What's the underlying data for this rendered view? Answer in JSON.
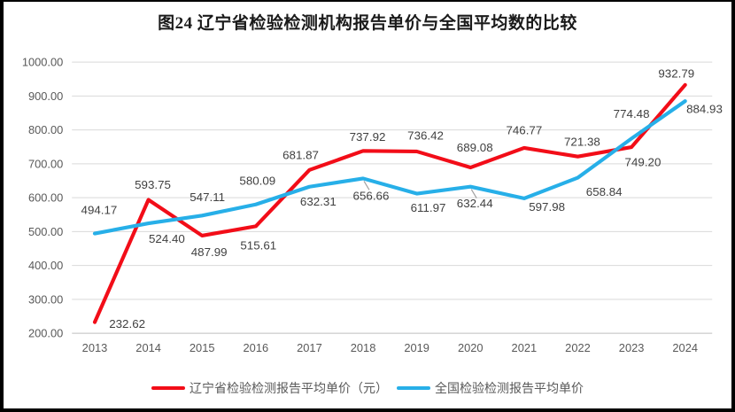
{
  "colors": {
    "liaoning_red": "#F20D18",
    "national_blue": "#27AFE8",
    "grid": "#D9D9D9",
    "axis": "#BFBFBF",
    "tick_text": "#595959",
    "label_text": "#404040",
    "leader": "#A0A0A0",
    "frame": "#000000"
  },
  "chart_data": {
    "type": "line",
    "title": "图24 辽宁省检验检测机构报告单价与全国平均数的比较",
    "categories": [
      "2013",
      "2014",
      "2015",
      "2016",
      "2017",
      "2018",
      "2019",
      "2020",
      "2021",
      "2022",
      "2023",
      "2024"
    ],
    "series": [
      {
        "id": "liaoning",
        "name": "辽宁省检验检测报告平均单价（元）",
        "color": "#F20D18",
        "values": [
          232.62,
          593.75,
          487.99,
          515.61,
          681.87,
          737.92,
          736.42,
          689.08,
          746.77,
          721.38,
          749.2,
          932.79
        ],
        "label_offsets": [
          [
            37,
            2
          ],
          [
            5,
            -17
          ],
          [
            8,
            19
          ],
          [
            3,
            22
          ],
          [
            -10,
            -17
          ],
          [
            5,
            -16
          ],
          [
            10,
            -18
          ],
          [
            5,
            -23
          ],
          [
            0,
            -20
          ],
          [
            5,
            -17
          ],
          [
            13,
            17
          ],
          [
            -10,
            -13
          ]
        ]
      },
      {
        "id": "national",
        "name": "全国检验检测报告平均单价",
        "color": "#27AFE8",
        "values": [
          494.17,
          524.4,
          547.11,
          580.09,
          632.31,
          656.66,
          611.97,
          632.44,
          597.98,
          658.84,
          774.48,
          884.93
        ],
        "label_offsets": [
          [
            5,
            -27
          ],
          [
            21,
            18
          ],
          [
            6,
            -21
          ],
          [
            2,
            -27
          ],
          [
            10,
            17
          ],
          [
            9,
            20
          ],
          [
            13,
            16
          ],
          [
            5,
            19
          ],
          [
            26,
            10
          ],
          [
            30,
            16
          ],
          [
            0,
            -28
          ],
          [
            22,
            9
          ]
        ]
      }
    ],
    "ylim": [
      200,
      1000
    ],
    "y_tick_step": 100,
    "y_tick_labels": [
      "200.00",
      "300.00",
      "400.00",
      "500.00",
      "600.00",
      "700.00",
      "800.00",
      "900.00",
      "1000.00"
    ],
    "grid": true,
    "legend_position": "bottom",
    "leader_lines": [
      {
        "series": 1,
        "point": 5
      },
      {
        "series": 1,
        "point": 7
      }
    ]
  }
}
